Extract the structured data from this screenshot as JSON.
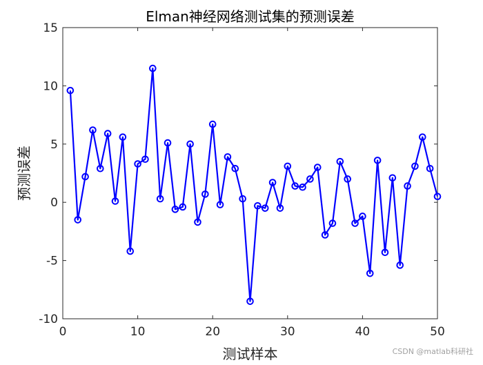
{
  "chart_data": {
    "type": "line",
    "title": "Elman神经网络测试集的预测误差",
    "xlabel": "测试样本",
    "ylabel": "预测误差",
    "xlim": [
      0,
      50
    ],
    "ylim": [
      -10,
      15
    ],
    "xticks": [
      0,
      10,
      20,
      30,
      40,
      50
    ],
    "yticks": [
      -10,
      -5,
      0,
      5,
      10,
      15
    ],
    "grid": false,
    "line_color": "#0000ff",
    "marker": "circle",
    "series": [
      {
        "x": [
          1,
          2,
          3,
          4,
          5,
          6,
          7,
          8,
          9,
          10,
          11,
          12,
          13,
          14,
          15,
          16,
          17,
          18,
          19,
          20,
          21,
          22,
          23,
          24,
          25,
          26,
          27,
          28,
          29,
          30,
          31,
          32,
          33,
          34,
          35,
          36,
          37,
          38,
          39,
          40,
          41,
          42,
          43,
          44,
          45,
          46,
          47,
          48,
          49,
          50
        ],
        "values": [
          9.6,
          -1.5,
          2.2,
          6.2,
          2.9,
          5.9,
          0.1,
          5.6,
          -4.2,
          3.3,
          3.7,
          11.5,
          0.3,
          5.1,
          -0.6,
          -0.4,
          5.0,
          -1.7,
          0.7,
          6.7,
          -0.2,
          3.9,
          2.9,
          0.3,
          -8.5,
          -0.3,
          -0.5,
          1.7,
          -0.5,
          3.1,
          1.4,
          1.3,
          2.0,
          3.0,
          -2.8,
          -1.8,
          3.5,
          2.0,
          -1.8,
          -1.2,
          -6.1,
          3.6,
          -4.3,
          2.1,
          -5.4,
          1.4,
          3.1,
          5.6,
          2.9,
          0.5
        ]
      }
    ]
  },
  "watermark": "CSDN @matlab科研社"
}
